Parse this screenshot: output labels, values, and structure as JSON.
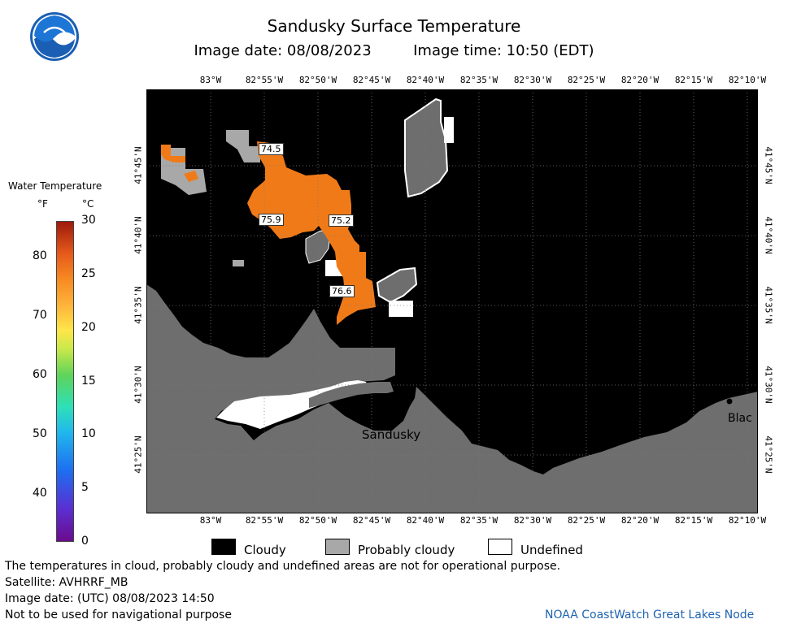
{
  "title": "Sandusky Surface Temperature",
  "image_date_label": "Image date: 08/08/2023",
  "image_time_label": "Image time: 10:50 (EDT)",
  "logo_icon": "noaa-logo-icon",
  "lon_ticks": [
    "83°W",
    "82°55'W",
    "82°50'W",
    "82°45'W",
    "82°40'W",
    "82°35'W",
    "82°30'W",
    "82°25'W",
    "82°20'W",
    "82°15'W",
    "82°10'W"
  ],
  "lat_ticks": [
    "41°45'N",
    "41°40'N",
    "41°35'N",
    "41°30'N",
    "41°25'N"
  ],
  "legend": {
    "title": "Water Temperature",
    "unit_f": "°F",
    "unit_c": "°C",
    "f_labels": [
      "80",
      "70",
      "60",
      "50",
      "40"
    ],
    "c_labels": [
      "30",
      "25",
      "20",
      "15",
      "10",
      "5",
      "0"
    ]
  },
  "temp_labels": [
    {
      "text": "74.5"
    },
    {
      "text": "75.9"
    },
    {
      "text": "75.2"
    },
    {
      "text": "76.6"
    }
  ],
  "place_names": {
    "sandusky": "Sandusky",
    "blac": "Blac"
  },
  "cloud_legend": {
    "cloudy": "Cloudy",
    "probably_cloudy": "Probably cloudy",
    "undefined": "Undefined"
  },
  "footer": {
    "line1": "The temperatures in cloud, probably cloudy and undefined areas are not for operational purpose.",
    "line2": "Satellite: AVHRRF_MB",
    "line3": "Image date: (UTC) 08/08/2023  14:50",
    "line4": "Not to be used for navigational purpose"
  },
  "credit": "NOAA CoastWatch Great Lakes Node",
  "colors": {
    "cloudy": "#000000",
    "probably_cloudy": "#a8a8a8",
    "land": "#6e6e6e",
    "undefined": "#ffffff",
    "water_warm": "#f07a18"
  }
}
